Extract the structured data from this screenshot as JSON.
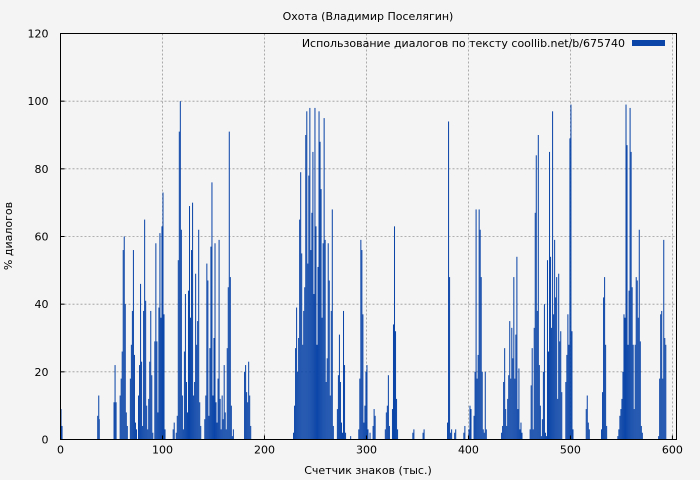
{
  "chart_data": {
    "type": "bar",
    "title": "Охота (Владимир Поселягин)",
    "xlabel": "Счетчик знаков (тыс.)",
    "ylabel": "% диалогов",
    "xlim": [
      0,
      604
    ],
    "ylim": [
      0,
      120
    ],
    "xticks": [
      0,
      100,
      200,
      300,
      400,
      500,
      600
    ],
    "yticks": [
      0,
      20,
      40,
      60,
      80,
      100,
      120
    ],
    "grid": true,
    "legend_position": "top-right",
    "colors": {
      "bar": "#0b45a8",
      "grid": "#999999",
      "background": "#f4f4f4"
    },
    "series": [
      {
        "name": "Использование диалогов по тексту coollib.net/b/675740",
        "points": [
          [
            0,
            9
          ],
          [
            1,
            4
          ],
          [
            36,
            7
          ],
          [
            37,
            13
          ],
          [
            37.5,
            6
          ],
          [
            52,
            11
          ],
          [
            53,
            22
          ],
          [
            54,
            11
          ],
          [
            58,
            13
          ],
          [
            59,
            18
          ],
          [
            60,
            26
          ],
          [
            61,
            56
          ],
          [
            62,
            60
          ],
          [
            63,
            40
          ],
          [
            64,
            8
          ],
          [
            65,
            4
          ],
          [
            68,
            18
          ],
          [
            69,
            28
          ],
          [
            70,
            38
          ],
          [
            71,
            56
          ],
          [
            72,
            25
          ],
          [
            73,
            5
          ],
          [
            74,
            3
          ],
          [
            76,
            13
          ],
          [
            77,
            22
          ],
          [
            78,
            46
          ],
          [
            79,
            23
          ],
          [
            80,
            4
          ],
          [
            81,
            38
          ],
          [
            82,
            65
          ],
          [
            83,
            41
          ],
          [
            84,
            10
          ],
          [
            85,
            3
          ],
          [
            86,
            12
          ],
          [
            87,
            23
          ],
          [
            88,
            38
          ],
          [
            89,
            19
          ],
          [
            90,
            2
          ],
          [
            92,
            29
          ],
          [
            93,
            58
          ],
          [
            94,
            29
          ],
          [
            95,
            8
          ],
          [
            96,
            39
          ],
          [
            97,
            61
          ],
          [
            98,
            36
          ],
          [
            99,
            63
          ],
          [
            100,
            73
          ],
          [
            101,
            37
          ],
          [
            102,
            3
          ],
          [
            110,
            3
          ],
          [
            111,
            5
          ],
          [
            113,
            2
          ],
          [
            114,
            7
          ],
          [
            115,
            53
          ],
          [
            116,
            91
          ],
          [
            117,
            100
          ],
          [
            118,
            62
          ],
          [
            119,
            13
          ],
          [
            120,
            3
          ],
          [
            121,
            26
          ],
          [
            122,
            43
          ],
          [
            123,
            17
          ],
          [
            124,
            8
          ],
          [
            125,
            44
          ],
          [
            126,
            69
          ],
          [
            127,
            36
          ],
          [
            128,
            56
          ],
          [
            129,
            70
          ],
          [
            130,
            13
          ],
          [
            131,
            17
          ],
          [
            132,
            49
          ],
          [
            133,
            28
          ],
          [
            134,
            35
          ],
          [
            135,
            62
          ],
          [
            136,
            11
          ],
          [
            137,
            4
          ],
          [
            141,
            6
          ],
          [
            142,
            13
          ],
          [
            143,
            52
          ],
          [
            144,
            47
          ],
          [
            145,
            7
          ],
          [
            146,
            27
          ],
          [
            147,
            57
          ],
          [
            148,
            76
          ],
          [
            149,
            13
          ],
          [
            150,
            30
          ],
          [
            151,
            58
          ],
          [
            152,
            11
          ],
          [
            153,
            5
          ],
          [
            154,
            18
          ],
          [
            155,
            59
          ],
          [
            156,
            12
          ],
          [
            157,
            3
          ],
          [
            158,
            13
          ],
          [
            159,
            6
          ],
          [
            160,
            22
          ],
          [
            161,
            8
          ],
          [
            162,
            3
          ],
          [
            163,
            27
          ],
          [
            164,
            45
          ],
          [
            165,
            91
          ],
          [
            166,
            48
          ],
          [
            167,
            10
          ],
          [
            168,
            1
          ],
          [
            169,
            3
          ],
          [
            180,
            20
          ],
          [
            181,
            22
          ],
          [
            182,
            14
          ],
          [
            183,
            11
          ],
          [
            184,
            23
          ],
          [
            185,
            13
          ],
          [
            186,
            4
          ],
          [
            228,
            2
          ],
          [
            229,
            10
          ],
          [
            230,
            27
          ],
          [
            231,
            39
          ],
          [
            232,
            20
          ],
          [
            233,
            30
          ],
          [
            234,
            65
          ],
          [
            235,
            79
          ],
          [
            236,
            55
          ],
          [
            237,
            28
          ],
          [
            238,
            38
          ],
          [
            239,
            45
          ],
          [
            240,
            90
          ],
          [
            241,
            97
          ],
          [
            242,
            52
          ],
          [
            243,
            78
          ],
          [
            244,
            98
          ],
          [
            245,
            56
          ],
          [
            246,
            67
          ],
          [
            247,
            85
          ],
          [
            248,
            43
          ],
          [
            249,
            98
          ],
          [
            250,
            63
          ],
          [
            251,
            28
          ],
          [
            252,
            51
          ],
          [
            253,
            97
          ],
          [
            254,
            88
          ],
          [
            255,
            74
          ],
          [
            256,
            36
          ],
          [
            257,
            58
          ],
          [
            258,
            95
          ],
          [
            259,
            59
          ],
          [
            260,
            17
          ],
          [
            261,
            24
          ],
          [
            262,
            58
          ],
          [
            263,
            47
          ],
          [
            264,
            13
          ],
          [
            265,
            38
          ],
          [
            266,
            68
          ],
          [
            267,
            4
          ],
          [
            271,
            9
          ],
          [
            272,
            19
          ],
          [
            273,
            31
          ],
          [
            274,
            17
          ],
          [
            275,
            5
          ],
          [
            276,
            2
          ],
          [
            277,
            38
          ],
          [
            278,
            22
          ],
          [
            279,
            2
          ],
          [
            284,
            1
          ],
          [
            292,
            3
          ],
          [
            293,
            18
          ],
          [
            294,
            59
          ],
          [
            295,
            56
          ],
          [
            296,
            37
          ],
          [
            297,
            5
          ],
          [
            298,
            10
          ],
          [
            299,
            20
          ],
          [
            300,
            22
          ],
          [
            301,
            3
          ],
          [
            303,
            2
          ],
          [
            306,
            4
          ],
          [
            307,
            9
          ],
          [
            308,
            7
          ],
          [
            318,
            3
          ],
          [
            319,
            8
          ],
          [
            320,
            10
          ],
          [
            321,
            19
          ],
          [
            322,
            4
          ],
          [
            325,
            9
          ],
          [
            326,
            34
          ],
          [
            327,
            63
          ],
          [
            328,
            32
          ],
          [
            329,
            12
          ],
          [
            330,
            3
          ],
          [
            345,
            2
          ],
          [
            346,
            3
          ],
          [
            355,
            2
          ],
          [
            356,
            3
          ],
          [
            379,
            5
          ],
          [
            380,
            94
          ],
          [
            381,
            48
          ],
          [
            382,
            2
          ],
          [
            383,
            3
          ],
          [
            386,
            2
          ],
          [
            387,
            3
          ],
          [
            395,
            2
          ],
          [
            396,
            4
          ],
          [
            400,
            3
          ],
          [
            401,
            10
          ],
          [
            402,
            9
          ],
          [
            405,
            7
          ],
          [
            406,
            20
          ],
          [
            407,
            68
          ],
          [
            408,
            18
          ],
          [
            409,
            25
          ],
          [
            410,
            68
          ],
          [
            411,
            62
          ],
          [
            412,
            48
          ],
          [
            413,
            20
          ],
          [
            414,
            3
          ],
          [
            415,
            2
          ],
          [
            416,
            20
          ],
          [
            417,
            3
          ],
          [
            432,
            2
          ],
          [
            433,
            4
          ],
          [
            434,
            17
          ],
          [
            435,
            27
          ],
          [
            436,
            9
          ],
          [
            437,
            4
          ],
          [
            438,
            12
          ],
          [
            439,
            19
          ],
          [
            440,
            35
          ],
          [
            441,
            18
          ],
          [
            442,
            33
          ],
          [
            443,
            24
          ],
          [
            444,
            48
          ],
          [
            445,
            18
          ],
          [
            446,
            31
          ],
          [
            447,
            54
          ],
          [
            448,
            9
          ],
          [
            449,
            21
          ],
          [
            450,
            3
          ],
          [
            451,
            5
          ],
          [
            452,
            2
          ],
          [
            460,
            3
          ],
          [
            461,
            16
          ],
          [
            462,
            27
          ],
          [
            463,
            3
          ],
          [
            464,
            33
          ],
          [
            465,
            67
          ],
          [
            466,
            84
          ],
          [
            467,
            38
          ],
          [
            468,
            90
          ],
          [
            469,
            22
          ],
          [
            470,
            10
          ],
          [
            471,
            1
          ],
          [
            472,
            6
          ],
          [
            473,
            20
          ],
          [
            474,
            40
          ],
          [
            475,
            2
          ],
          [
            476,
            1
          ],
          [
            477,
            53
          ],
          [
            478,
            26
          ],
          [
            479,
            85
          ],
          [
            480,
            54
          ],
          [
            481,
            33
          ],
          [
            482,
            97
          ],
          [
            483,
            37
          ],
          [
            484,
            59
          ],
          [
            485,
            42
          ],
          [
            486,
            48
          ],
          [
            487,
            12
          ],
          [
            488,
            49
          ],
          [
            489,
            29
          ],
          [
            490,
            32
          ],
          [
            491,
            14
          ],
          [
            495,
            17
          ],
          [
            496,
            25
          ],
          [
            497,
            37
          ],
          [
            498,
            28
          ],
          [
            499,
            89
          ],
          [
            500,
            99
          ],
          [
            501,
            32
          ],
          [
            502,
            3
          ],
          [
            515,
            9
          ],
          [
            516,
            13
          ],
          [
            517,
            5
          ],
          [
            518,
            3
          ],
          [
            530,
            3
          ],
          [
            531,
            14
          ],
          [
            532,
            42
          ],
          [
            533,
            48
          ],
          [
            534,
            28
          ],
          [
            535,
            4
          ],
          [
            546,
            1
          ],
          [
            547,
            3
          ],
          [
            548,
            7
          ],
          [
            549,
            9
          ],
          [
            550,
            12
          ],
          [
            551,
            20
          ],
          [
            552,
            37
          ],
          [
            553,
            36
          ],
          [
            554,
            99
          ],
          [
            555,
            87
          ],
          [
            556,
            28
          ],
          [
            557,
            44
          ],
          [
            558,
            98
          ],
          [
            559,
            85
          ],
          [
            560,
            45
          ],
          [
            561,
            28
          ],
          [
            562,
            9
          ],
          [
            563,
            28
          ],
          [
            564,
            48
          ],
          [
            565,
            47
          ],
          [
            566,
            36
          ],
          [
            567,
            62
          ],
          [
            568,
            29
          ],
          [
            569,
            4
          ],
          [
            570,
            2
          ],
          [
            586,
            1
          ],
          [
            587,
            18
          ],
          [
            588,
            37
          ],
          [
            589,
            38
          ],
          [
            590,
            18
          ],
          [
            591,
            59
          ],
          [
            592,
            30
          ],
          [
            593,
            28
          ]
        ]
      }
    ]
  }
}
